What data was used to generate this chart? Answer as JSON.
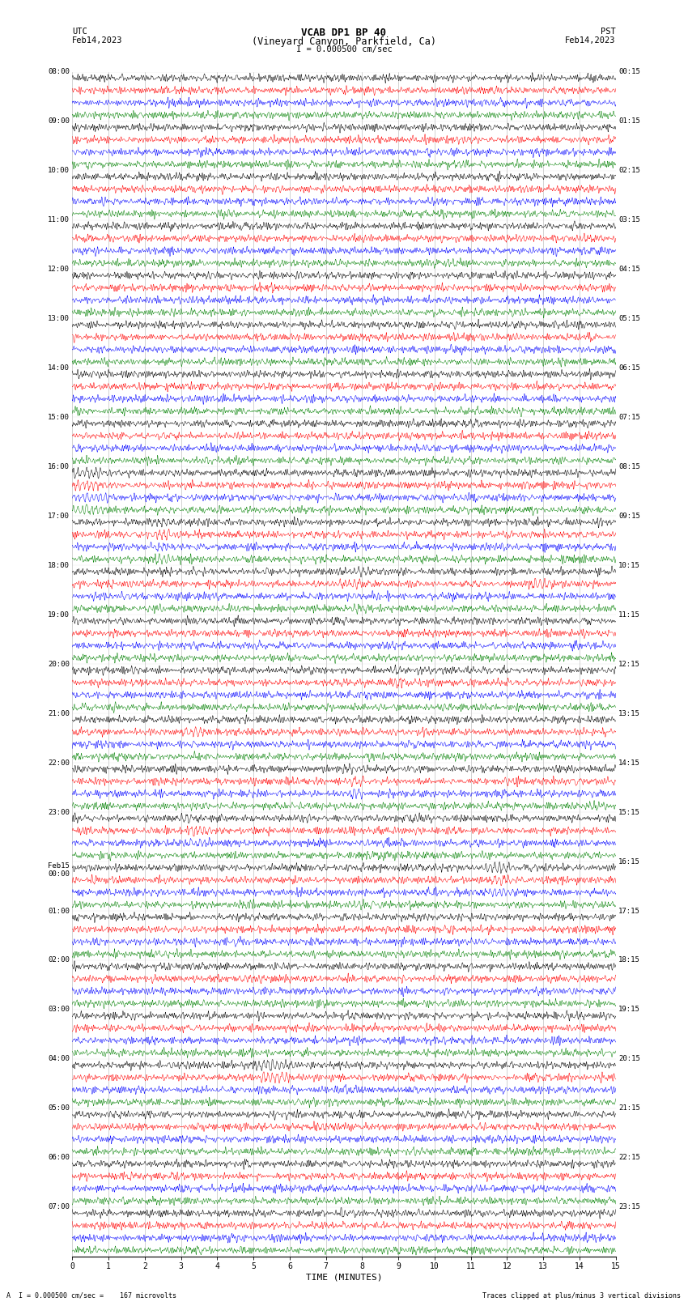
{
  "title_line1": "VCAB DP1 BP 40",
  "title_line2": "(Vineyard Canyon, Parkfield, Ca)",
  "scale_text": "I = 0.000500 cm/sec",
  "left_label": "UTC",
  "right_label": "PST",
  "left_date": "Feb14,2023",
  "right_date": "Feb14,2023",
  "xlabel": "TIME (MINUTES)",
  "bottom_left": "A  I = 0.000500 cm/sec =    167 microvolts",
  "bottom_right": "Traces clipped at plus/minus 3 vertical divisions",
  "colors": [
    "black",
    "red",
    "blue",
    "green"
  ],
  "time_minutes": 15,
  "n_hours": 24,
  "traces_per_hour": 4,
  "noise_amp": 0.008,
  "clip_val": 0.028,
  "trace_lw": 0.35,
  "fig_w": 8.5,
  "fig_h": 16.13,
  "left_times": [
    "08:00",
    "09:00",
    "10:00",
    "11:00",
    "12:00",
    "13:00",
    "14:00",
    "15:00",
    "16:00",
    "17:00",
    "18:00",
    "19:00",
    "20:00",
    "21:00",
    "22:00",
    "23:00",
    "Feb15\n00:00",
    "01:00",
    "02:00",
    "03:00",
    "04:00",
    "05:00",
    "06:00",
    "07:00"
  ],
  "right_times": [
    "00:15",
    "01:15",
    "02:15",
    "03:15",
    "04:15",
    "05:15",
    "06:15",
    "07:15",
    "08:15",
    "09:15",
    "10:15",
    "11:15",
    "12:15",
    "13:15",
    "14:15",
    "15:15",
    "16:15",
    "17:15",
    "18:15",
    "19:15",
    "20:15",
    "21:15",
    "22:15",
    "23:15"
  ],
  "events": [
    {
      "hour": 0,
      "ch": 3,
      "t": 14.2,
      "amp": 0.22,
      "dur": 0.3
    },
    {
      "hour": 1,
      "ch": 2,
      "t": 0.5,
      "amp": 0.35,
      "dur": 0.5
    },
    {
      "hour": 4,
      "ch": 2,
      "t": 5.5,
      "amp": 0.18,
      "dur": 0.25
    },
    {
      "hour": 5,
      "ch": 1,
      "t": 13.8,
      "amp": 0.2,
      "dur": 0.3
    },
    {
      "hour": 6,
      "ch": 0,
      "t": 13.5,
      "amp": 0.25,
      "dur": 0.4
    },
    {
      "hour": 6,
      "ch": 1,
      "t": 13.5,
      "amp": 0.22,
      "dur": 0.3
    },
    {
      "hour": 7,
      "ch": 3,
      "t": 5.2,
      "amp": 0.2,
      "dur": 0.3
    },
    {
      "hour": 7,
      "ch": 0,
      "t": 14.7,
      "amp": 0.25,
      "dur": 0.4
    },
    {
      "hour": 8,
      "ch": 0,
      "t": 0.5,
      "amp": 0.7,
      "dur": 1.5
    },
    {
      "hour": 8,
      "ch": 1,
      "t": 0.5,
      "amp": 0.65,
      "dur": 1.5
    },
    {
      "hour": 8,
      "ch": 2,
      "t": 0.5,
      "amp": 0.6,
      "dur": 1.5
    },
    {
      "hour": 8,
      "ch": 3,
      "t": 0.5,
      "amp": 0.7,
      "dur": 1.5
    },
    {
      "hour": 9,
      "ch": 0,
      "t": 2.5,
      "amp": 0.55,
      "dur": 1.2
    },
    {
      "hour": 9,
      "ch": 1,
      "t": 2.5,
      "amp": 0.6,
      "dur": 1.2
    },
    {
      "hour": 9,
      "ch": 2,
      "t": 2.5,
      "amp": 0.5,
      "dur": 1.2
    },
    {
      "hour": 9,
      "ch": 3,
      "t": 2.5,
      "amp": 0.55,
      "dur": 1.2
    },
    {
      "hour": 9,
      "ch": 3,
      "t": 6.8,
      "amp": 0.3,
      "dur": 0.6
    },
    {
      "hour": 10,
      "ch": 0,
      "t": 7.8,
      "amp": 0.5,
      "dur": 1.0
    },
    {
      "hour": 10,
      "ch": 1,
      "t": 7.8,
      "amp": 0.45,
      "dur": 1.0
    },
    {
      "hour": 10,
      "ch": 2,
      "t": 7.8,
      "amp": 0.4,
      "dur": 1.0
    },
    {
      "hour": 10,
      "ch": 3,
      "t": 7.8,
      "amp": 0.5,
      "dur": 1.0
    },
    {
      "hour": 10,
      "ch": 1,
      "t": 13.0,
      "amp": 0.6,
      "dur": 1.0
    },
    {
      "hour": 11,
      "ch": 2,
      "t": 5.0,
      "amp": 0.35,
      "dur": 0.6
    },
    {
      "hour": 11,
      "ch": 3,
      "t": 10.5,
      "amp": 0.35,
      "dur": 0.6
    },
    {
      "hour": 12,
      "ch": 0,
      "t": 9.0,
      "amp": 0.45,
      "dur": 0.8
    },
    {
      "hour": 12,
      "ch": 1,
      "t": 9.0,
      "amp": 0.4,
      "dur": 0.8
    },
    {
      "hour": 13,
      "ch": 1,
      "t": 3.5,
      "amp": 0.65,
      "dur": 1.0
    },
    {
      "hour": 13,
      "ch": 2,
      "t": 9.5,
      "amp": 0.35,
      "dur": 0.5
    },
    {
      "hour": 14,
      "ch": 0,
      "t": 7.8,
      "amp": 0.55,
      "dur": 1.0
    },
    {
      "hour": 14,
      "ch": 1,
      "t": 7.8,
      "amp": 0.5,
      "dur": 1.0
    },
    {
      "hour": 14,
      "ch": 2,
      "t": 7.8,
      "amp": 0.45,
      "dur": 1.0
    },
    {
      "hour": 14,
      "ch": 3,
      "t": 14.5,
      "amp": 0.5,
      "dur": 0.8
    },
    {
      "hour": 15,
      "ch": 0,
      "t": 3.2,
      "amp": 0.6,
      "dur": 0.8
    },
    {
      "hour": 15,
      "ch": 1,
      "t": 3.5,
      "amp": 0.65,
      "dur": 1.0
    },
    {
      "hour": 15,
      "ch": 2,
      "t": 3.5,
      "amp": 0.55,
      "dur": 1.0
    },
    {
      "hour": 15,
      "ch": 3,
      "t": 8.5,
      "amp": 0.35,
      "dur": 0.5
    },
    {
      "hour": 16,
      "ch": 0,
      "t": 11.8,
      "amp": 0.75,
      "dur": 1.2
    },
    {
      "hour": 16,
      "ch": 1,
      "t": 11.8,
      "amp": 0.7,
      "dur": 1.2
    },
    {
      "hour": 16,
      "ch": 2,
      "t": 11.8,
      "amp": 0.65,
      "dur": 1.2
    },
    {
      "hour": 16,
      "ch": 3,
      "t": 8.0,
      "amp": 0.45,
      "dur": 0.8
    },
    {
      "hour": 17,
      "ch": 3,
      "t": 13.5,
      "amp": 0.45,
      "dur": 0.6
    },
    {
      "hour": 18,
      "ch": 1,
      "t": 5.2,
      "amp": 0.35,
      "dur": 0.5
    },
    {
      "hour": 18,
      "ch": 2,
      "t": 5.2,
      "amp": 0.3,
      "dur": 0.5
    },
    {
      "hour": 19,
      "ch": 0,
      "t": 13.8,
      "amp": 0.6,
      "dur": 0.8
    },
    {
      "hour": 20,
      "ch": 0,
      "t": 5.5,
      "amp": 0.9,
      "dur": 1.5
    },
    {
      "hour": 20,
      "ch": 1,
      "t": 5.5,
      "amp": 0.85,
      "dur": 1.5
    },
    {
      "hour": 20,
      "ch": 2,
      "t": 7.5,
      "amp": 0.45,
      "dur": 0.8
    },
    {
      "hour": 20,
      "ch": 3,
      "t": 13.0,
      "amp": 0.45,
      "dur": 0.6
    },
    {
      "hour": 21,
      "ch": 1,
      "t": 6.8,
      "amp": 0.45,
      "dur": 0.6
    },
    {
      "hour": 21,
      "ch": 3,
      "t": 9.5,
      "amp": 0.6,
      "dur": 0.8
    },
    {
      "hour": 22,
      "ch": 2,
      "t": 11.0,
      "amp": 0.45,
      "dur": 0.6
    },
    {
      "hour": 23,
      "ch": 0,
      "t": 7.5,
      "amp": 0.4,
      "dur": 0.5
    },
    {
      "hour": 23,
      "ch": 2,
      "t": 14.2,
      "amp": 0.35,
      "dur": 0.5
    }
  ]
}
